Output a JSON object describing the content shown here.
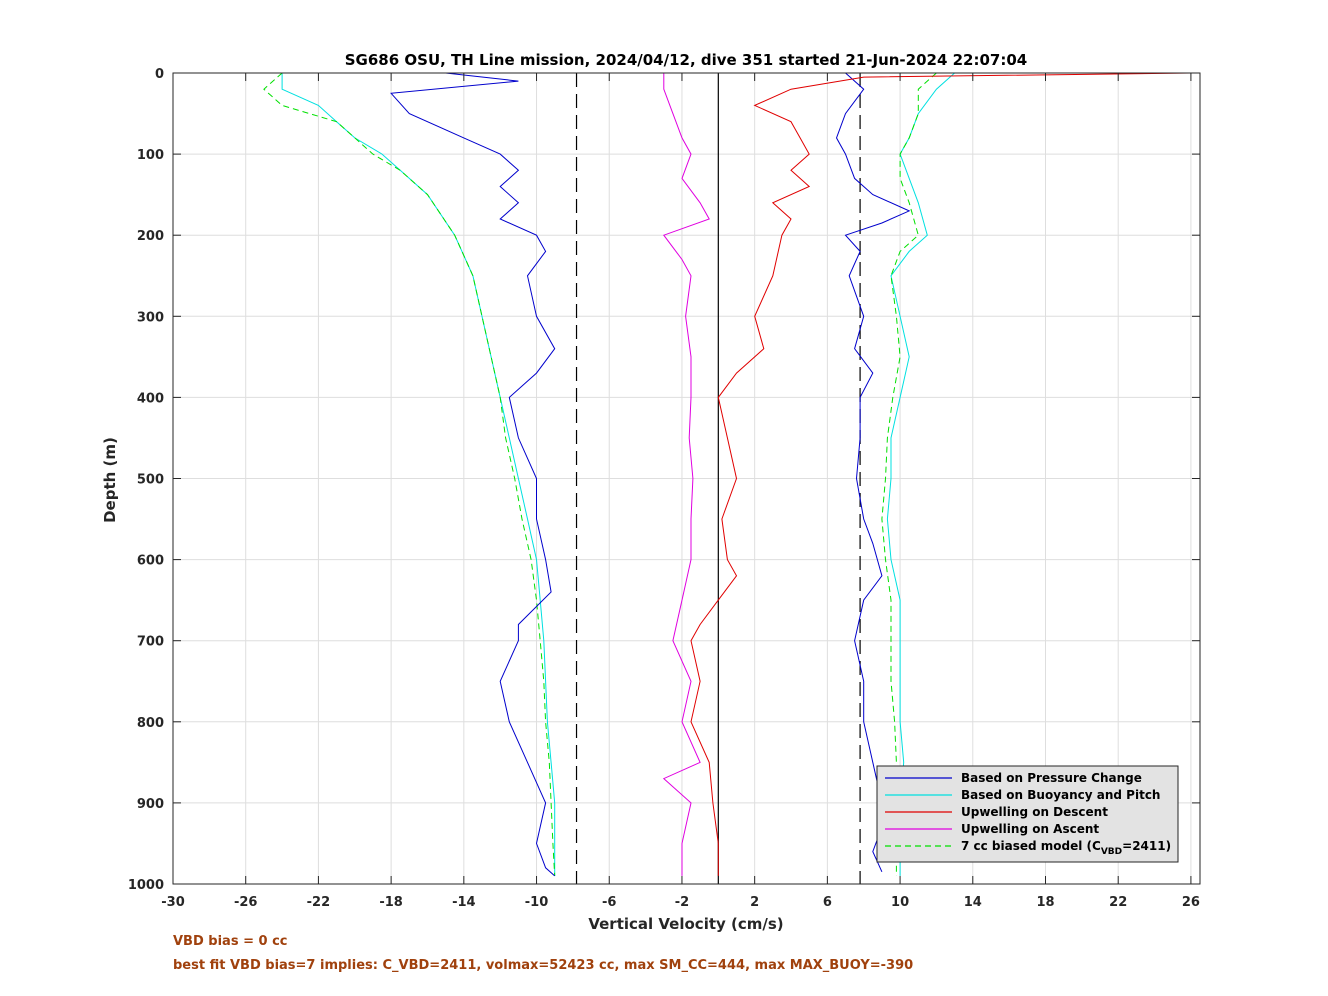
{
  "chart_data": {
    "type": "line",
    "title": "SG686 OSU, TH Line mission, 2024/04/12, dive 351 started 21-Jun-2024 22:07:04",
    "xlabel": "Vertical Velocity (cm/s)",
    "ylabel": "Depth (m)",
    "xlim": [
      -30,
      26.5
    ],
    "ylim": [
      0,
      1000
    ],
    "y_reversed": true,
    "xticks": [
      "-30",
      "-26",
      "-22",
      "-18",
      "-14",
      "-10",
      "-6",
      "-2",
      "2",
      "6",
      "10",
      "14",
      "18",
      "22",
      "26"
    ],
    "yticks": [
      "0",
      "100",
      "200",
      "300",
      "400",
      "500",
      "600",
      "700",
      "800",
      "900",
      "1000"
    ],
    "grid": true,
    "legend_position": "bottom-right",
    "reference_lines": {
      "solid_x": 0,
      "dashed_x": [
        -7.8,
        7.8
      ]
    },
    "series": [
      {
        "name": "Based on Pressure Change",
        "color": "#0000cc",
        "descent": [
          [
            0,
            -15
          ],
          [
            10,
            -11
          ],
          [
            25,
            -18
          ],
          [
            50,
            -17
          ],
          [
            80,
            -14
          ],
          [
            100,
            -12
          ],
          [
            120,
            -11
          ],
          [
            140,
            -12
          ],
          [
            160,
            -11
          ],
          [
            180,
            -12
          ],
          [
            200,
            -10
          ],
          [
            220,
            -9.5
          ],
          [
            250,
            -10.5
          ],
          [
            300,
            -10
          ],
          [
            340,
            -9
          ],
          [
            370,
            -10
          ],
          [
            400,
            -11.5
          ],
          [
            450,
            -11
          ],
          [
            500,
            -10
          ],
          [
            550,
            -10
          ],
          [
            600,
            -9.5
          ],
          [
            640,
            -9.2
          ],
          [
            680,
            -11
          ],
          [
            700,
            -11
          ],
          [
            750,
            -12
          ],
          [
            800,
            -11.5
          ],
          [
            850,
            -10.5
          ],
          [
            900,
            -9.5
          ],
          [
            950,
            -10
          ],
          [
            980,
            -9.5
          ],
          [
            990,
            -9
          ]
        ],
        "ascent": [
          [
            0,
            7
          ],
          [
            20,
            8
          ],
          [
            50,
            7
          ],
          [
            80,
            6.5
          ],
          [
            100,
            7
          ],
          [
            130,
            7.5
          ],
          [
            150,
            8.5
          ],
          [
            170,
            10.5
          ],
          [
            185,
            9
          ],
          [
            200,
            7
          ],
          [
            220,
            7.8
          ],
          [
            250,
            7.2
          ],
          [
            300,
            8
          ],
          [
            340,
            7.5
          ],
          [
            370,
            8.5
          ],
          [
            400,
            7.8
          ],
          [
            450,
            7.8
          ],
          [
            500,
            7.6
          ],
          [
            550,
            8
          ],
          [
            580,
            8.5
          ],
          [
            620,
            9
          ],
          [
            650,
            8
          ],
          [
            700,
            7.5
          ],
          [
            750,
            8
          ],
          [
            800,
            8
          ],
          [
            850,
            8.5
          ],
          [
            900,
            9
          ],
          [
            930,
            9
          ],
          [
            960,
            8.5
          ],
          [
            985,
            9
          ]
        ]
      },
      {
        "name": "Based on Buoyancy and Pitch",
        "color": "#00e0e0",
        "descent": [
          [
            0,
            -24
          ],
          [
            20,
            -24
          ],
          [
            40,
            -22
          ],
          [
            60,
            -21
          ],
          [
            80,
            -20
          ],
          [
            100,
            -18.5
          ],
          [
            120,
            -17.5
          ],
          [
            150,
            -16
          ],
          [
            200,
            -14.5
          ],
          [
            250,
            -13.5
          ],
          [
            300,
            -13
          ],
          [
            350,
            -12.5
          ],
          [
            400,
            -12
          ],
          [
            450,
            -11.5
          ],
          [
            500,
            -11
          ],
          [
            550,
            -10.5
          ],
          [
            600,
            -10
          ],
          [
            650,
            -9.8
          ],
          [
            700,
            -9.6
          ],
          [
            750,
            -9.5
          ],
          [
            800,
            -9.4
          ],
          [
            850,
            -9.2
          ],
          [
            900,
            -9
          ],
          [
            950,
            -9
          ],
          [
            990,
            -9
          ]
        ],
        "ascent": [
          [
            0,
            13
          ],
          [
            20,
            12
          ],
          [
            50,
            11
          ],
          [
            80,
            10.5
          ],
          [
            100,
            10
          ],
          [
            130,
            10.5
          ],
          [
            160,
            11
          ],
          [
            200,
            11.5
          ],
          [
            220,
            10.5
          ],
          [
            250,
            9.5
          ],
          [
            300,
            10
          ],
          [
            350,
            10.5
          ],
          [
            400,
            10
          ],
          [
            450,
            9.5
          ],
          [
            500,
            9.5
          ],
          [
            550,
            9.3
          ],
          [
            600,
            9.5
          ],
          [
            650,
            10
          ],
          [
            700,
            10
          ],
          [
            750,
            10
          ],
          [
            800,
            10
          ],
          [
            850,
            10.2
          ],
          [
            900,
            10
          ],
          [
            950,
            10
          ],
          [
            990,
            10
          ]
        ]
      },
      {
        "name": "Upwelling on Descent",
        "color": "#e00000",
        "values": [
          [
            0,
            26
          ],
          [
            5,
            8
          ],
          [
            20,
            4
          ],
          [
            40,
            2
          ],
          [
            60,
            4
          ],
          [
            80,
            4.5
          ],
          [
            100,
            5
          ],
          [
            120,
            4
          ],
          [
            140,
            5
          ],
          [
            160,
            3
          ],
          [
            180,
            4
          ],
          [
            200,
            3.5
          ],
          [
            250,
            3
          ],
          [
            300,
            2
          ],
          [
            340,
            2.5
          ],
          [
            370,
            1
          ],
          [
            400,
            0
          ],
          [
            450,
            0.5
          ],
          [
            500,
            1
          ],
          [
            550,
            0.2
          ],
          [
            600,
            0.5
          ],
          [
            620,
            1
          ],
          [
            650,
            0
          ],
          [
            680,
            -1
          ],
          [
            700,
            -1.5
          ],
          [
            750,
            -1
          ],
          [
            800,
            -1.5
          ],
          [
            850,
            -0.5
          ],
          [
            900,
            -0.3
          ],
          [
            950,
            0
          ],
          [
            990,
            0
          ]
        ]
      },
      {
        "name": "Upwelling on Ascent",
        "color": "#e000e0",
        "values": [
          [
            0,
            -3
          ],
          [
            20,
            -3
          ],
          [
            50,
            -2.5
          ],
          [
            80,
            -2
          ],
          [
            100,
            -1.5
          ],
          [
            130,
            -2
          ],
          [
            160,
            -1
          ],
          [
            180,
            -0.5
          ],
          [
            200,
            -3
          ],
          [
            230,
            -2
          ],
          [
            250,
            -1.5
          ],
          [
            300,
            -1.8
          ],
          [
            350,
            -1.5
          ],
          [
            400,
            -1.5
          ],
          [
            450,
            -1.6
          ],
          [
            500,
            -1.4
          ],
          [
            550,
            -1.5
          ],
          [
            600,
            -1.5
          ],
          [
            650,
            -2
          ],
          [
            700,
            -2.5
          ],
          [
            750,
            -1.5
          ],
          [
            800,
            -2
          ],
          [
            850,
            -1
          ],
          [
            870,
            -3
          ],
          [
            900,
            -1.5
          ],
          [
            950,
            -2
          ],
          [
            990,
            -2
          ]
        ]
      },
      {
        "name": "7 cc biased model (C",
        "name_sub": "VBD",
        "name_suffix": "=2411)",
        "color": "#00e000",
        "dashed": true,
        "descent": [
          [
            0,
            -24
          ],
          [
            20,
            -25
          ],
          [
            40,
            -24
          ],
          [
            60,
            -21
          ],
          [
            80,
            -20
          ],
          [
            100,
            -19
          ],
          [
            120,
            -17.5
          ],
          [
            150,
            -16
          ],
          [
            200,
            -14.5
          ],
          [
            250,
            -13.5
          ],
          [
            300,
            -13
          ],
          [
            350,
            -12.5
          ],
          [
            400,
            -12
          ],
          [
            450,
            -11.7
          ],
          [
            500,
            -11.2
          ],
          [
            550,
            -10.8
          ],
          [
            600,
            -10.3
          ],
          [
            650,
            -10
          ],
          [
            700,
            -9.8
          ],
          [
            750,
            -9.6
          ],
          [
            800,
            -9.5
          ],
          [
            850,
            -9.3
          ],
          [
            900,
            -9.2
          ],
          [
            950,
            -9.1
          ],
          [
            990,
            -9
          ]
        ],
        "ascent": [
          [
            0,
            12
          ],
          [
            20,
            11
          ],
          [
            50,
            11
          ],
          [
            80,
            10.5
          ],
          [
            100,
            10
          ],
          [
            130,
            10
          ],
          [
            160,
            10.5
          ],
          [
            200,
            11
          ],
          [
            220,
            10
          ],
          [
            250,
            9.5
          ],
          [
            300,
            9.8
          ],
          [
            350,
            10
          ],
          [
            400,
            9.6
          ],
          [
            450,
            9.3
          ],
          [
            500,
            9.2
          ],
          [
            550,
            9
          ],
          [
            600,
            9.2
          ],
          [
            650,
            9.5
          ],
          [
            700,
            9.5
          ],
          [
            750,
            9.5
          ],
          [
            800,
            9.7
          ],
          [
            850,
            9.8
          ],
          [
            900,
            9.8
          ],
          [
            950,
            9.8
          ],
          [
            990,
            9.8
          ]
        ]
      }
    ]
  },
  "footer": {
    "line1": "VBD bias = 0 cc",
    "line2": "best fit VBD bias=7 implies: C_VBD=2411, volmax=52423 cc, max SM_CC=444, max MAX_BUOY=-390"
  }
}
